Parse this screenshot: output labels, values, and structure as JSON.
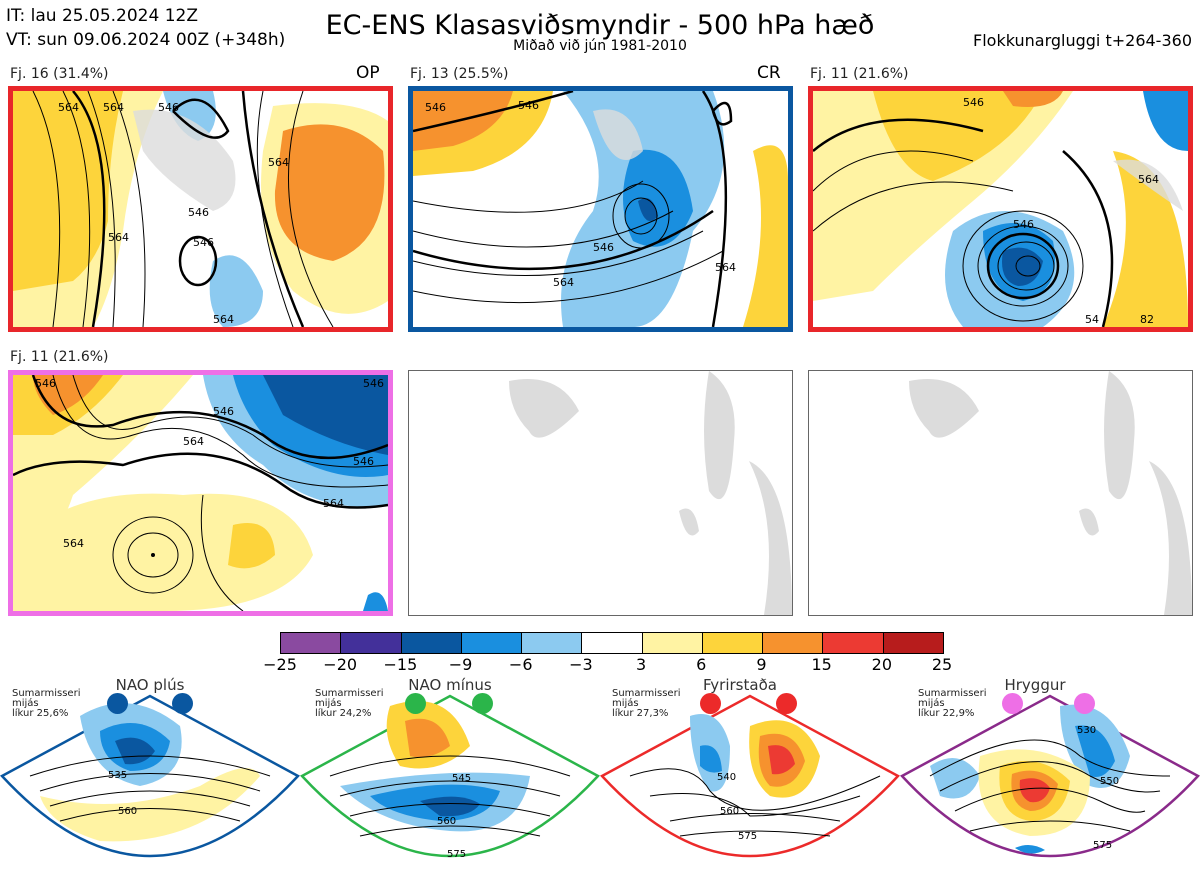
{
  "header": {
    "it": "IT: lau 25.05.2024 12Z",
    "vt": "VT: sun 09.06.2024 00Z  (+348h)",
    "title": "EC-ENS Klasasviðsmyndir - 500 hPa hæð",
    "subtitle": "Miðað við jún 1981-2010",
    "window": "Flokkunargluggi t+264-360"
  },
  "panels": [
    {
      "label": "Fj. 16 (31.4%)",
      "tag": "OP",
      "border": "#e8262a",
      "contours": [
        "564",
        "564",
        "546",
        "546",
        "564",
        "564",
        "564",
        "546"
      ]
    },
    {
      "label": "Fj. 13 (25.5%)",
      "tag": "CR",
      "border": "#0a57a0",
      "contours": [
        "546",
        "546",
        "546",
        "564",
        "564"
      ]
    },
    {
      "label": "Fj. 11 (21.6%)",
      "tag": "",
      "border": "#e8262a",
      "contours": [
        "546",
        "546",
        "564",
        "54",
        "82"
      ]
    },
    {
      "label": "Fj. 11 (21.6%)",
      "tag": "",
      "border": "#ee6fe6",
      "contours": [
        "546",
        "564",
        "546",
        "564",
        "564",
        "546",
        "546"
      ]
    }
  ],
  "colorbar": {
    "ticks": [
      "−25",
      "−20",
      "−15",
      "−9",
      "−6",
      "−3",
      "3",
      "6",
      "9",
      "15",
      "20",
      "25"
    ],
    "colors": [
      "#8a4aa0",
      "#43309a",
      "#0a57a0",
      "#1a8fdf",
      "#8ccaf0",
      "#ffffff",
      "#fff3a3",
      "#fdd43b",
      "#f6922e",
      "#ec3a33",
      "#b71c1c"
    ]
  },
  "regimes": [
    {
      "name": "NAO plús",
      "info": [
        "Sumarmisseri",
        "mijás",
        "líkur 25,6%"
      ],
      "dot": "#0a57a0",
      "border": "#0a57a0",
      "labels": [
        "535",
        "560"
      ]
    },
    {
      "name": "NAO mínus",
      "info": [
        "Sumarmisseri",
        "mijás",
        "líkur 24,2%"
      ],
      "dot": "#2bb54a",
      "border": "#2bb54a",
      "labels": [
        "545",
        "560",
        "575"
      ]
    },
    {
      "name": "Fyrirstaða",
      "info": [
        "Sumarmisseri",
        "mijás",
        "líkur 27,3%"
      ],
      "dot": "#ec2a2a",
      "border": "#ec2a2a",
      "labels": [
        "540",
        "560",
        "575"
      ]
    },
    {
      "name": "Hryggur",
      "info": [
        "Sumarmisseri",
        "mijás",
        "líkur 22,9%"
      ],
      "dot": "#ee6fe6",
      "border": "#8a2a8a",
      "labels": [
        "530",
        "550",
        "575"
      ]
    }
  ]
}
